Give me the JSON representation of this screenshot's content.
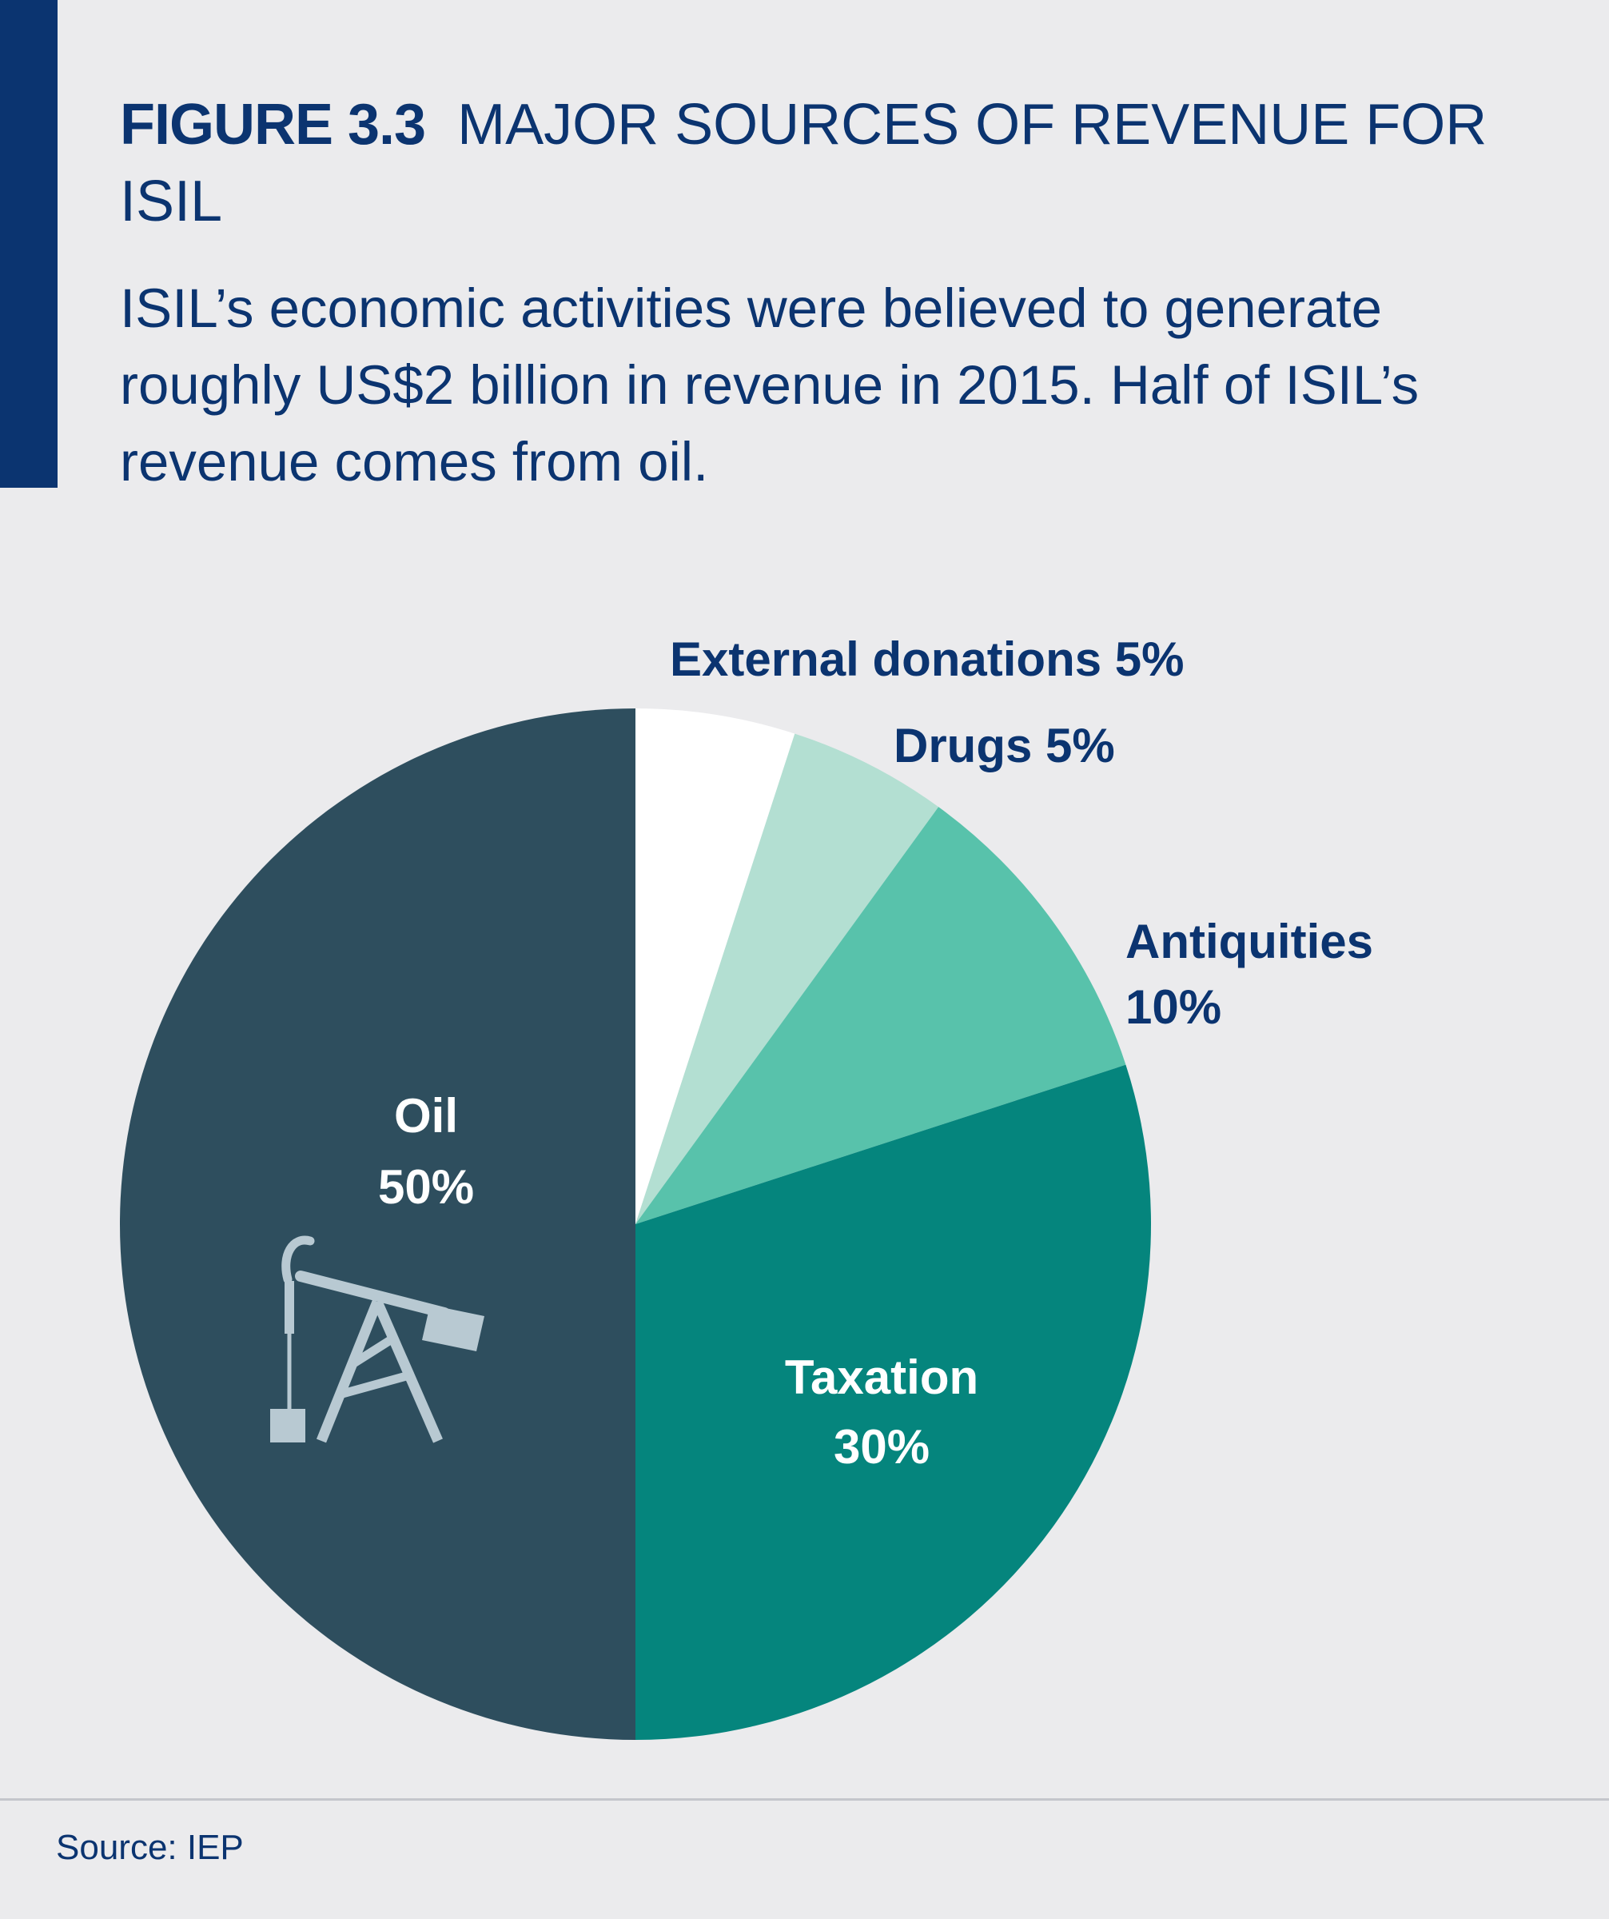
{
  "header": {
    "figure_label": "FIGURE 3.3",
    "title": "MAJOR SOURCES OF REVENUE FOR ISIL",
    "subtitle": "ISIL’s economic activities were believed to generate roughly US$2 billion in revenue in 2015. Half of ISIL’s revenue comes from oil."
  },
  "chart_data": {
    "type": "pie",
    "title": "MAJOR SOURCES OF REVENUE FOR ISIL",
    "start": "12 o'clock",
    "direction": "clockwise",
    "slices": [
      {
        "label": "External donations",
        "value": 5,
        "value_label": "5%",
        "color": "#ffffff",
        "text_color": "#0b3470",
        "label_position": "outside"
      },
      {
        "label": "Drugs",
        "value": 5,
        "value_label": "5%",
        "color": "#b3dfd2",
        "text_color": "#0b3470",
        "label_position": "outside"
      },
      {
        "label": "Antiquities",
        "value": 10,
        "value_label": "10%",
        "color": "#58c2ab",
        "text_color": "#0b3470",
        "label_position": "outside"
      },
      {
        "label": "Taxation",
        "value": 30,
        "value_label": "30%",
        "color": "#05857d",
        "text_color": "#ffffff",
        "label_position": "inside"
      },
      {
        "label": "Oil",
        "value": 50,
        "value_label": "50%",
        "color": "#2e4e5e",
        "text_color": "#ffffff",
        "label_position": "inside",
        "icon": "oil-pump-jack-icon",
        "icon_color": "#b8c9d2"
      }
    ]
  },
  "footer": {
    "source": "Source: IEP"
  }
}
